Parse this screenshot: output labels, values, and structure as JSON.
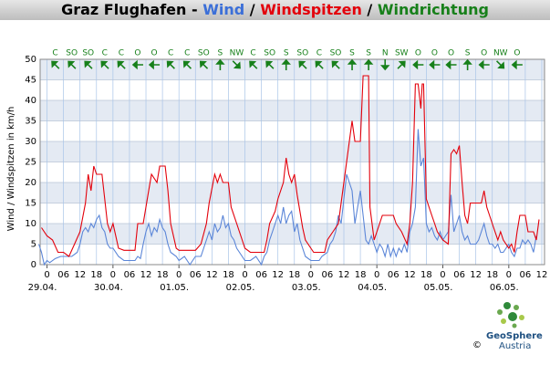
{
  "chart_data": {
    "type": "line",
    "title_parts": [
      {
        "text": "Graz Flughafen -",
        "color": "#000000"
      },
      {
        "text": "Wind",
        "color": "#3b6fd8"
      },
      {
        "text": "/",
        "color": "#000000"
      },
      {
        "text": "Windspitzen",
        "color": "#e3000b"
      },
      {
        "text": "/",
        "color": "#000000"
      },
      {
        "text": "Windrichtung",
        "color": "#17801a"
      }
    ],
    "y_label": "Wind / Windspitzen in km/h",
    "xlim": [
      -2.5,
      181
    ],
    "ylim": [
      0,
      50
    ],
    "yticks": [
      0,
      5,
      10,
      15,
      20,
      25,
      30,
      35,
      40,
      45,
      50
    ],
    "xticks": [
      0,
      {
        "value": 6,
        "label": "06"
      },
      12,
      18,
      {
        "value": 24,
        "label": "0"
      },
      {
        "value": 30,
        "label": "06"
      },
      {
        "value": 36,
        "label": "12"
      },
      {
        "value": 42,
        "label": "18"
      },
      {
        "value": 48,
        "label": "0"
      },
      {
        "value": 54,
        "label": "06"
      },
      {
        "value": 60,
        "label": "12"
      },
      {
        "value": 66,
        "label": "18"
      },
      {
        "value": 72,
        "label": "0"
      },
      {
        "value": 78,
        "label": "06"
      },
      {
        "value": 84,
        "label": "12"
      },
      {
        "value": 90,
        "label": "18"
      },
      {
        "value": 96,
        "label": "0"
      },
      {
        "value": 102,
        "label": "06"
      },
      {
        "value": 108,
        "label": "12"
      },
      {
        "value": 114,
        "label": "18"
      },
      {
        "value": 120,
        "label": "0"
      },
      {
        "value": 126,
        "label": "06"
      },
      {
        "value": 132,
        "label": "12"
      },
      {
        "value": 138,
        "label": "18"
      },
      {
        "value": 144,
        "label": "0"
      },
      {
        "value": 150,
        "label": "06"
      },
      {
        "value": 156,
        "label": "12"
      },
      {
        "value": 162,
        "label": "18"
      },
      {
        "value": 168,
        "label": "0"
      },
      {
        "value": 174,
        "label": "06"
      },
      {
        "value": 180,
        "label": "12"
      }
    ],
    "date_ticks": [
      {
        "value": 0,
        "label": "29.04."
      },
      {
        "value": 24,
        "label": "30.04."
      },
      {
        "value": 48,
        "label": "01.05."
      },
      {
        "value": 72,
        "label": "02.05."
      },
      {
        "value": 96,
        "label": "03.05."
      },
      {
        "value": 120,
        "label": "04.05."
      },
      {
        "value": 144,
        "label": "05.05."
      },
      {
        "value": 168,
        "label": "06.05."
      }
    ],
    "grid": true,
    "band_color": "#e4eaf3",
    "series": [
      {
        "name": "Wind",
        "color": "#5b86d8",
        "x": [
          -3,
          -2,
          -1,
          0,
          1,
          3,
          5,
          9,
          11,
          12,
          13,
          14,
          15,
          16,
          17,
          18,
          19,
          20,
          21,
          22,
          23,
          24,
          26,
          28,
          32,
          33,
          34,
          35,
          36,
          37,
          38,
          39,
          40,
          41,
          42,
          43,
          44,
          45,
          47,
          48,
          50,
          52,
          54,
          56,
          57,
          58,
          59,
          60,
          61,
          62,
          63,
          64,
          65,
          66,
          67,
          68,
          69,
          70,
          72,
          74,
          76,
          78,
          79,
          80,
          81,
          82,
          83,
          84,
          85,
          86,
          87,
          88,
          89,
          90,
          91,
          92,
          93,
          94,
          96,
          99,
          100,
          102,
          103,
          104,
          105,
          106,
          107,
          108,
          109,
          110,
          111,
          112,
          113,
          114,
          115,
          116,
          117,
          118,
          119,
          120,
          121,
          122,
          123,
          124,
          125,
          126,
          127,
          128,
          129,
          130,
          131,
          132,
          133,
          134,
          135,
          136,
          137,
          138,
          139,
          140,
          141,
          142,
          143,
          144,
          145,
          146,
          147,
          148,
          149,
          150,
          151,
          152,
          153,
          154,
          155,
          156,
          157,
          158,
          159,
          160,
          161,
          162,
          163,
          164,
          165,
          166,
          167,
          168,
          169,
          170,
          171,
          172,
          173,
          174,
          175,
          176,
          177,
          178
        ],
        "values": [
          5,
          3,
          0,
          1,
          0.5,
          1.5,
          2,
          2,
          3,
          5,
          8,
          9,
          8,
          10,
          9,
          11,
          12,
          9,
          8,
          5,
          4,
          4,
          2,
          1,
          1,
          2,
          1.5,
          5,
          8,
          10,
          7,
          9,
          8,
          11,
          9,
          8,
          5,
          3,
          2,
          1,
          2,
          0,
          2,
          2,
          4,
          6,
          8,
          6,
          10,
          8,
          9,
          12,
          9,
          10,
          7,
          6,
          4,
          3,
          1,
          1,
          2,
          0,
          2,
          3,
          6,
          8,
          10,
          12,
          10,
          14,
          10,
          12,
          13,
          8,
          10,
          6,
          4,
          2,
          1,
          1,
          2,
          3,
          5,
          6,
          8,
          12,
          10,
          16,
          22,
          20,
          18,
          10,
          14,
          18,
          12,
          6,
          5,
          7,
          5,
          3,
          5,
          4,
          2,
          5,
          2,
          4,
          2,
          4,
          3,
          5,
          3,
          8,
          10,
          14,
          33,
          24,
          26,
          10,
          8,
          9,
          7,
          6,
          8,
          6,
          7,
          8,
          17,
          8,
          10,
          12,
          8,
          6,
          7,
          5,
          5,
          5,
          6,
          8,
          10,
          7,
          5,
          5,
          4,
          5,
          3,
          3,
          4,
          5,
          3,
          2,
          4,
          4,
          6,
          5,
          6,
          5,
          3,
          7
        ]
      },
      {
        "name": "Windspitzen",
        "color": "#e3000b",
        "x": [
          -2,
          0,
          2,
          4,
          6,
          8,
          10,
          12,
          14,
          15,
          16,
          17,
          18,
          20,
          21,
          22,
          23,
          24,
          26,
          28,
          32,
          33,
          35,
          37,
          38,
          40,
          41,
          43,
          44,
          45,
          47,
          48,
          54,
          56,
          58,
          59,
          61,
          62,
          63,
          64,
          66,
          67,
          69,
          70,
          71,
          72,
          74,
          79,
          80,
          81,
          83,
          84,
          86,
          87,
          88,
          89,
          90,
          91,
          92,
          93,
          94,
          96,
          97,
          101,
          102,
          104,
          106,
          108,
          109,
          110,
          111,
          112,
          114,
          115,
          116,
          117,
          117.5,
          119,
          120,
          122,
          124,
          126,
          127,
          129,
          131,
          132,
          133,
          134,
          135,
          136,
          136.5,
          137,
          138,
          140,
          141,
          142,
          144,
          146,
          147,
          148,
          149,
          150,
          151,
          152,
          153,
          154,
          156,
          158,
          159,
          160,
          161,
          162,
          164,
          165,
          166,
          168,
          169,
          170,
          171,
          172,
          174,
          175,
          177,
          178,
          179
        ],
        "values": [
          9,
          7,
          6,
          3,
          3,
          2,
          5,
          8,
          15,
          22,
          18,
          24,
          22,
          22,
          16,
          10,
          8,
          10,
          4,
          3.5,
          3.5,
          10,
          10,
          18,
          22,
          20,
          24,
          24,
          18,
          10,
          4,
          3.5,
          3.5,
          5,
          10,
          15,
          22,
          20,
          22,
          20,
          20,
          14,
          10,
          8,
          6,
          4,
          3,
          3,
          6,
          10,
          13,
          16,
          20,
          26,
          22,
          20,
          22,
          17,
          13,
          9,
          6,
          4,
          3,
          3,
          6,
          8,
          10,
          20,
          25,
          30,
          35,
          30,
          30,
          46,
          46,
          46,
          14,
          6,
          8,
          12,
          12,
          12,
          10,
          8,
          5,
          10,
          20,
          44,
          44,
          38,
          44,
          44,
          16,
          12,
          10,
          8,
          6,
          5,
          27,
          28,
          27,
          29,
          20,
          12,
          10,
          15,
          15,
          15,
          18,
          14,
          12,
          10,
          6,
          8,
          6,
          4,
          5,
          3,
          8,
          12,
          12,
          8,
          8,
          6,
          11
        ]
      }
    ],
    "directions": {
      "color": "#17801a",
      "x": [
        3,
        9,
        15,
        21,
        27,
        33,
        39,
        45,
        51,
        57,
        63,
        69,
        75,
        81,
        87,
        93,
        99,
        105,
        111,
        117,
        123,
        129,
        135,
        141,
        147,
        153,
        159,
        165,
        171
      ],
      "labels": [
        "C",
        "SO",
        "SO",
        "C",
        "C",
        "O",
        "O",
        "C",
        "C",
        "SO",
        "S",
        "NW",
        "C",
        "SO",
        "S",
        "SO",
        "C",
        "SO",
        "S",
        "S",
        "N",
        "SW",
        "O",
        "O",
        "O",
        "S",
        "O",
        "NW",
        "O"
      ],
      "degrees": [
        135,
        135,
        135,
        135,
        135,
        90,
        90,
        135,
        135,
        135,
        180,
        315,
        135,
        135,
        180,
        135,
        135,
        135,
        180,
        180,
        0,
        225,
        90,
        90,
        90,
        180,
        90,
        315,
        90
      ]
    },
    "logo": {
      "name": "GeoSphere",
      "country": "Austria",
      "copyright": "©"
    }
  }
}
